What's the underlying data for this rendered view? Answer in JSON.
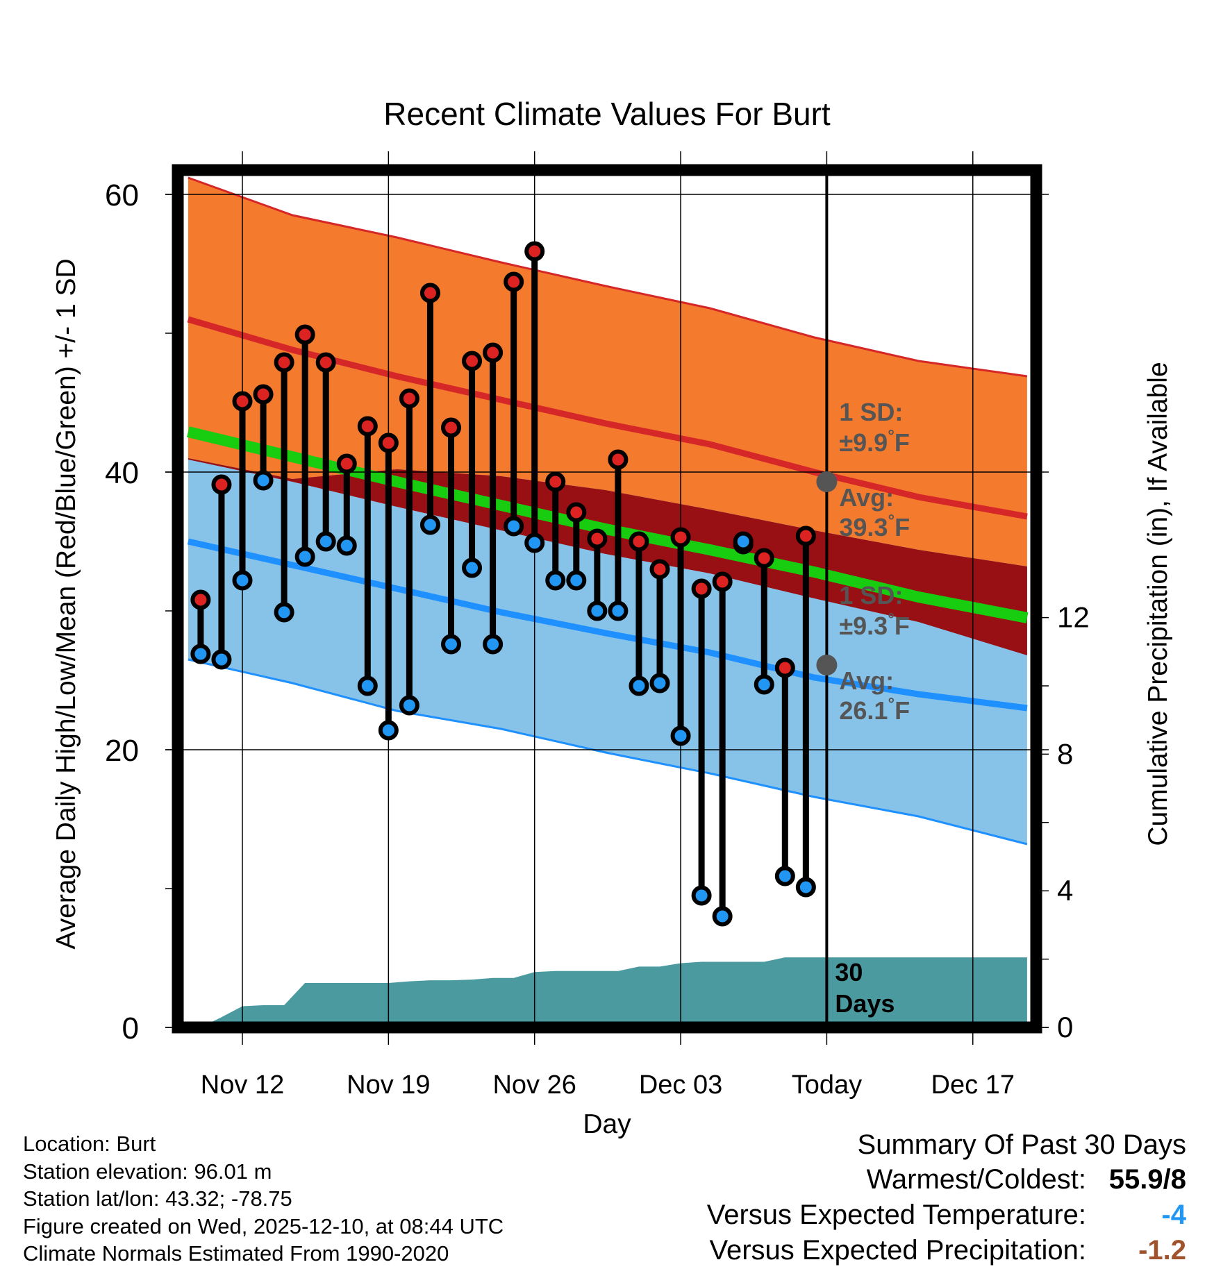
{
  "chart_data": {
    "type": "line",
    "title": "Recent Climate Values For Burt",
    "xlabel": "Day",
    "ylabel": "Average Daily High/Low/Mean (Red/Blue/Green) +/- 1 SD",
    "y2label": "Cumulative Precipitation (in), If Available",
    "ylim": [
      0,
      62
    ],
    "y2lim": [
      0,
      24.5
    ],
    "yticks": [
      "0",
      "20",
      "40",
      "60"
    ],
    "y2ticks": [
      "0",
      "4",
      "8",
      "12"
    ],
    "xlim": [
      -2.9,
      38.9
    ],
    "xticks": [
      {
        "day": 0,
        "label": "Nov 12"
      },
      {
        "day": 7,
        "label": "Nov 19"
      },
      {
        "day": 14,
        "label": "Nov 26"
      },
      {
        "day": 21,
        "label": "Dec 03"
      },
      {
        "day": 28,
        "label": "Today"
      },
      {
        "day": 35,
        "label": "Dec 17"
      }
    ],
    "grid": true,
    "today_day": 28,
    "band_days": [
      -2.6,
      2.4,
      7.4,
      12.4,
      17.4,
      22.4,
      27.4,
      32.4,
      37.6
    ],
    "normal_high_upper": [
      61.2,
      58.5,
      56.9,
      55.1,
      53.4,
      51.8,
      49.7,
      48.0,
      46.9
    ],
    "normal_high_avg": [
      51.0,
      48.8,
      46.9,
      45.2,
      43.5,
      42.0,
      40.0,
      38.2,
      36.8
    ],
    "normal_high_lower": [
      40.9,
      39.3,
      37.5,
      35.8,
      34.1,
      32.7,
      30.9,
      29.2,
      26.8
    ],
    "normal_mean": [
      42.9,
      41.1,
      39.3,
      37.6,
      35.9,
      34.4,
      32.8,
      31.0,
      29.5
    ],
    "normal_low_upper": [
      41.0,
      39.5,
      40.2,
      39.7,
      38.7,
      37.3,
      35.8,
      34.4,
      33.2
    ],
    "normal_low_avg": [
      35.0,
      33.3,
      31.6,
      29.9,
      28.4,
      27.0,
      25.2,
      24.0,
      23.0
    ],
    "normal_low_lower": [
      26.5,
      24.8,
      22.8,
      21.5,
      19.8,
      18.3,
      16.6,
      15.2,
      13.2
    ],
    "series": [
      {
        "name": "Daily High",
        "days": [
          -2,
          -1,
          0,
          1,
          2,
          3,
          4,
          5,
          6,
          7,
          8,
          9,
          10,
          11,
          12,
          13,
          14,
          15,
          16,
          17,
          18,
          19,
          20,
          21,
          22,
          23,
          24,
          25,
          26,
          27
        ],
        "values": [
          30.8,
          39.1,
          45.1,
          45.6,
          47.9,
          49.9,
          47.9,
          40.6,
          43.3,
          42.1,
          45.3,
          52.9,
          43.2,
          48.0,
          48.6,
          53.7,
          55.9,
          39.3,
          37.1,
          35.2,
          40.9,
          35.0,
          33.0,
          35.3,
          31.6,
          32.1,
          34.8,
          33.8,
          25.9,
          35.4
        ]
      },
      {
        "name": "Daily Low",
        "days": [
          -2,
          -1,
          0,
          1,
          2,
          3,
          4,
          5,
          6,
          7,
          8,
          9,
          10,
          11,
          12,
          13,
          14,
          15,
          16,
          17,
          18,
          19,
          20,
          21,
          22,
          23,
          24,
          25,
          26,
          27
        ],
        "values": [
          26.9,
          26.5,
          32.2,
          39.4,
          29.9,
          33.9,
          35.0,
          34.7,
          24.6,
          21.4,
          23.2,
          36.2,
          27.6,
          33.1,
          27.6,
          36.1,
          34.9,
          32.2,
          32.2,
          30.0,
          30.0,
          24.6,
          24.8,
          21.0,
          9.5,
          8.0,
          35.0,
          24.7,
          10.9,
          10.1
        ]
      },
      {
        "name": "Cumulative Precipitation (in)",
        "days": [
          -2.6,
          -2.0,
          -1.0,
          0.0,
          1.0,
          2.0,
          3.0,
          4.0,
          5.0,
          6.0,
          7.0,
          8.0,
          9.0,
          10.0,
          11.0,
          12.0,
          13.0,
          14.0,
          15.0,
          16.0,
          17.0,
          18.0,
          19.0,
          20.0,
          21.0,
          22.0,
          23.0,
          24.0,
          25.0,
          26.0,
          27.0,
          28.0,
          37.6
        ],
        "values": [
          0.0,
          0.0,
          0.3,
          0.62,
          0.65,
          0.65,
          1.3,
          1.3,
          1.3,
          1.3,
          1.3,
          1.35,
          1.38,
          1.38,
          1.4,
          1.45,
          1.45,
          1.62,
          1.65,
          1.65,
          1.65,
          1.65,
          1.78,
          1.78,
          1.88,
          1.92,
          1.92,
          1.92,
          1.92,
          2.05,
          2.05,
          2.05,
          2.05
        ]
      }
    ],
    "annotations": [
      {
        "day": 28,
        "value": 39.3,
        "sd_label": "1 SD:",
        "sd_value": "±9.9",
        "avg_label": "Avg:",
        "avg_value": "39.3",
        "unit": "°F"
      },
      {
        "day": 28,
        "value": 26.1,
        "sd_label": "1 SD:",
        "sd_value": "±9.3",
        "avg_label": "Avg:",
        "avg_value": "26.1",
        "unit": "°F"
      }
    ],
    "period_label": [
      "30",
      "Days"
    ]
  },
  "colors": {
    "high_band": "#f47a2d",
    "high_line": "#d62728",
    "mean_band": "#980f14",
    "mean_line": "#18cc10",
    "low_band": "#87c3e8",
    "low_line": "#1e90ff",
    "precip": "#4a9aa0",
    "high_dot": "#dd2222",
    "low_dot": "#2196f3",
    "annotation": "#555555"
  },
  "footer": {
    "location": "Location: Burt",
    "elevation": "Station elevation: 96.01 m",
    "latlon": "Station lat/lon: 43.32; -78.75",
    "created": "Figure created on Wed, 2025-12-10, at 08:44 UTC",
    "normals": "Climate Normals Estimated From 1990-2020"
  },
  "summary": {
    "title": "Summary Of Past 30 Days",
    "warmest_coldest_label": "Warmest/Coldest:",
    "warmest_coldest_value": "55.9/8",
    "temp_label": "Versus Expected Temperature:",
    "temp_value": "-4",
    "temp_color": "#2196f3",
    "precip_label": "Versus Expected Precipitation:",
    "precip_value": "-1.2",
    "precip_color": "#a0522d"
  }
}
